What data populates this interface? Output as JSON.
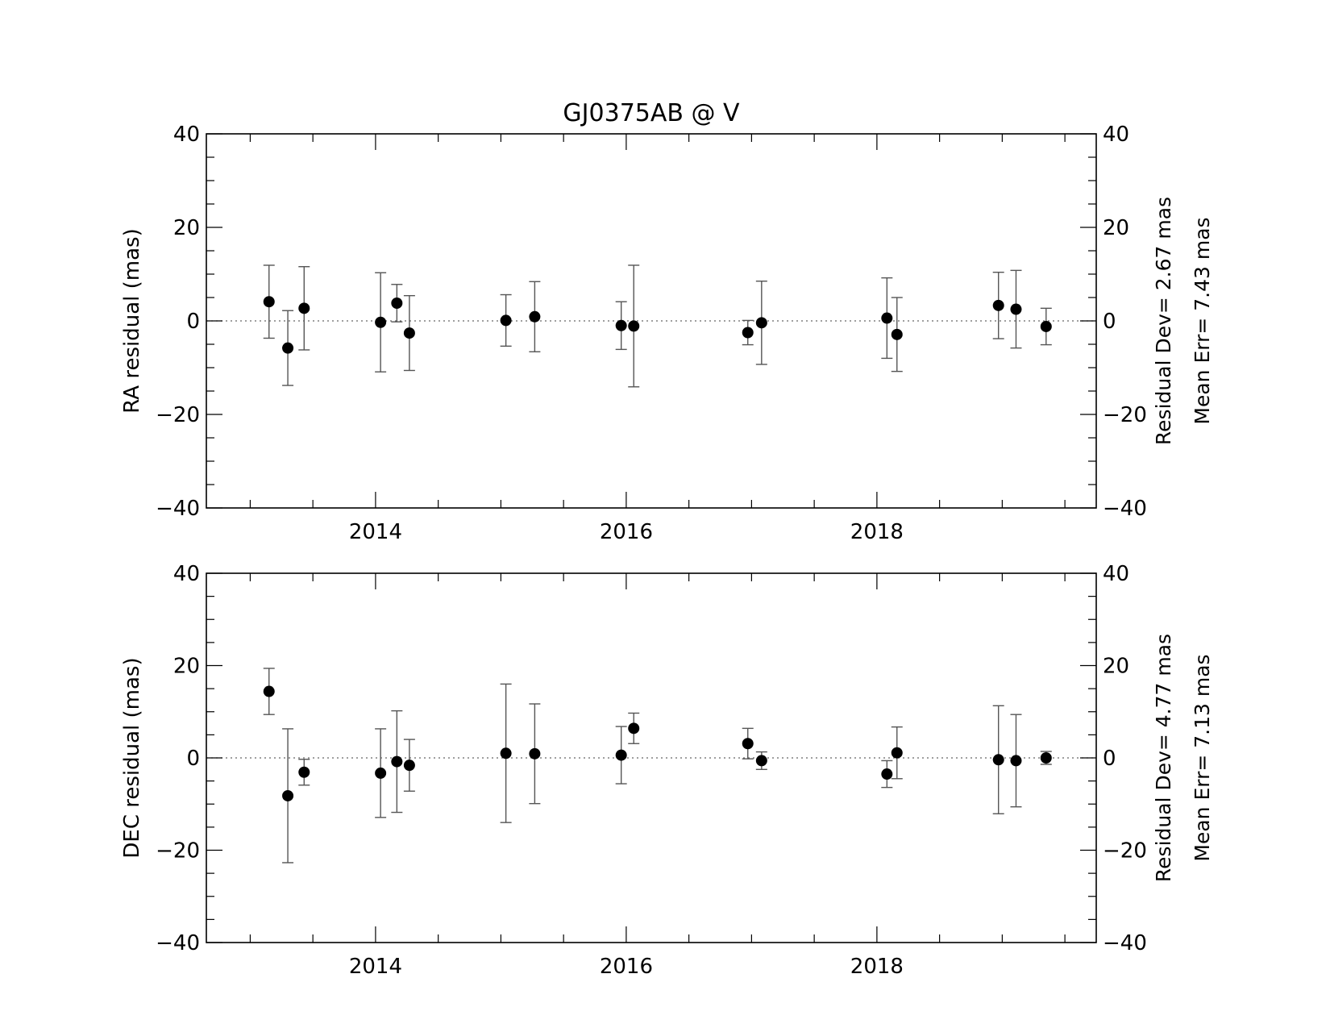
{
  "chart_data": {
    "title": "GJ0375AB @ V",
    "type": "scatter",
    "xlim": [
      2012.65,
      2019.75
    ],
    "x_ticks": [
      2014,
      2016,
      2018
    ],
    "x_minor_step": 0.5,
    "colors": {
      "points": "#000000",
      "errorbars": "#555555",
      "zero_line": "#666666"
    },
    "panels": [
      {
        "id": "ra",
        "ylabel": "RA residual (mas)",
        "ylim": [
          -40,
          40
        ],
        "y_ticks": [
          -40,
          -20,
          0,
          20,
          40
        ],
        "y_minor_step": 5,
        "stats": {
          "dev_label": "Residual Dev=",
          "dev_value": "2.67",
          "err_label": "Mean Err=",
          "err_value": "7.43",
          "unit": "mas"
        },
        "points": [
          {
            "x": 2013.15,
            "y": 4.1,
            "err": 7.8
          },
          {
            "x": 2013.3,
            "y": -5.8,
            "err": 8.0
          },
          {
            "x": 2013.43,
            "y": 2.7,
            "err": 8.9
          },
          {
            "x": 2014.04,
            "y": -0.3,
            "err": 10.6
          },
          {
            "x": 2014.17,
            "y": 3.8,
            "err": 4.0
          },
          {
            "x": 2014.27,
            "y": -2.6,
            "err": 8.0
          },
          {
            "x": 2015.04,
            "y": 0.1,
            "err": 5.5
          },
          {
            "x": 2015.27,
            "y": 0.9,
            "err": 7.5
          },
          {
            "x": 2015.96,
            "y": -1.0,
            "err": 5.1
          },
          {
            "x": 2016.06,
            "y": -1.1,
            "err": 13.0
          },
          {
            "x": 2016.97,
            "y": -2.5,
            "err": 2.6
          },
          {
            "x": 2017.08,
            "y": -0.4,
            "err": 8.9
          },
          {
            "x": 2018.08,
            "y": 0.6,
            "err": 8.6
          },
          {
            "x": 2018.16,
            "y": -2.9,
            "err": 7.9
          },
          {
            "x": 2018.97,
            "y": 3.3,
            "err": 7.1
          },
          {
            "x": 2019.11,
            "y": 2.5,
            "err": 8.3
          },
          {
            "x": 2019.35,
            "y": -1.2,
            "err": 3.9
          }
        ]
      },
      {
        "id": "dec",
        "ylabel": "DEC residual (mas)",
        "ylim": [
          -40,
          40
        ],
        "y_ticks": [
          -40,
          -20,
          0,
          20,
          40
        ],
        "y_minor_step": 5,
        "stats": {
          "dev_label": "Residual Dev=",
          "dev_value": "4.77",
          "err_label": "Mean Err=",
          "err_value": "7.13",
          "unit": "mas"
        },
        "points": [
          {
            "x": 2013.15,
            "y": 14.4,
            "err": 5.0
          },
          {
            "x": 2013.3,
            "y": -8.2,
            "err": 14.5
          },
          {
            "x": 2013.43,
            "y": -3.1,
            "err": 2.8
          },
          {
            "x": 2014.04,
            "y": -3.3,
            "err": 9.6
          },
          {
            "x": 2014.17,
            "y": -0.8,
            "err": 11.0
          },
          {
            "x": 2014.27,
            "y": -1.6,
            "err": 5.6
          },
          {
            "x": 2015.04,
            "y": 1.0,
            "err": 15.0
          },
          {
            "x": 2015.27,
            "y": 0.9,
            "err": 10.8
          },
          {
            "x": 2015.96,
            "y": 0.6,
            "err": 6.2
          },
          {
            "x": 2016.06,
            "y": 6.4,
            "err": 3.3
          },
          {
            "x": 2016.97,
            "y": 3.1,
            "err": 3.3
          },
          {
            "x": 2017.08,
            "y": -0.6,
            "err": 1.9
          },
          {
            "x": 2018.08,
            "y": -3.5,
            "err": 2.9
          },
          {
            "x": 2018.16,
            "y": 1.1,
            "err": 5.6
          },
          {
            "x": 2018.97,
            "y": -0.4,
            "err": 11.7
          },
          {
            "x": 2019.11,
            "y": -0.6,
            "err": 10.0
          },
          {
            "x": 2019.35,
            "y": 0.0,
            "err": 1.4
          }
        ]
      }
    ]
  }
}
